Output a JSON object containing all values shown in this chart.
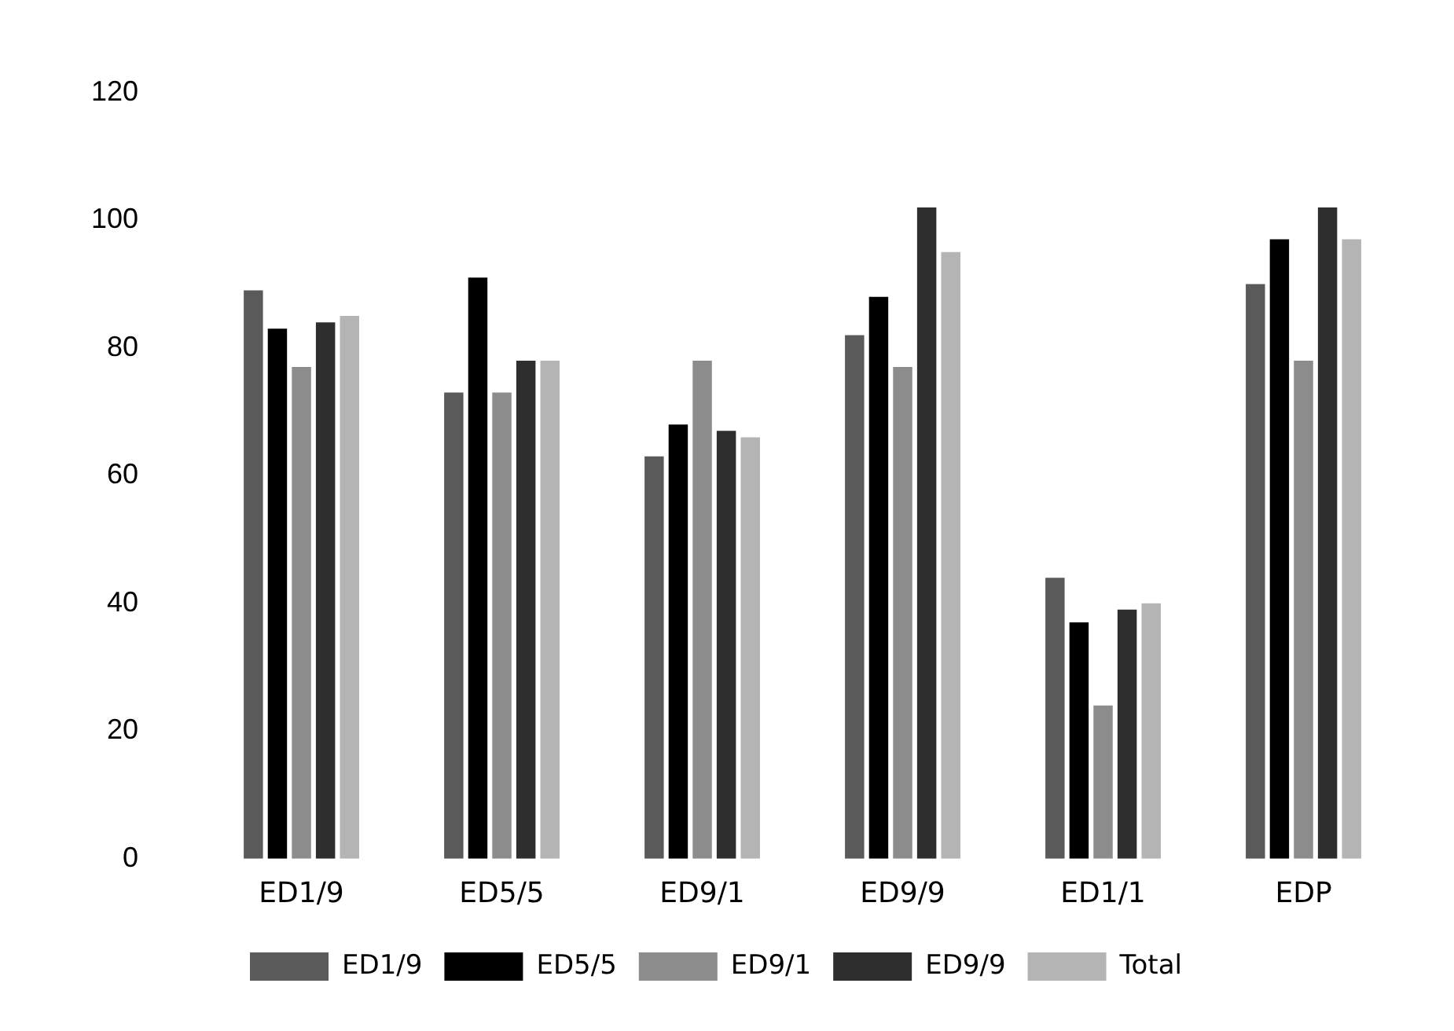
{
  "chart_data": {
    "type": "bar",
    "categories": [
      "ED1/9",
      "ED5/5",
      "ED9/1",
      "ED9/9",
      "ED1/1",
      "EDP"
    ],
    "series": [
      {
        "name": "ED1/9",
        "color": "#5a5a5a",
        "values": [
          89,
          73,
          63,
          82,
          44,
          90
        ]
      },
      {
        "name": "ED5/5",
        "color": "#000000",
        "values": [
          83,
          91,
          68,
          88,
          37,
          97
        ]
      },
      {
        "name": "ED9/1",
        "color": "#8c8c8c",
        "values": [
          77,
          73,
          78,
          77,
          24,
          78
        ]
      },
      {
        "name": "ED9/9",
        "color": "#2e2e2e",
        "values": [
          84,
          78,
          67,
          102,
          39,
          102
        ]
      },
      {
        "name": "Total",
        "color": "#b4b4b4",
        "values": [
          85,
          78,
          66,
          95,
          40,
          97
        ]
      }
    ],
    "ylim": [
      0,
      120
    ],
    "yticks": [
      0,
      20,
      40,
      60,
      80,
      100,
      120
    ],
    "grid": false,
    "legend": "bottom"
  }
}
